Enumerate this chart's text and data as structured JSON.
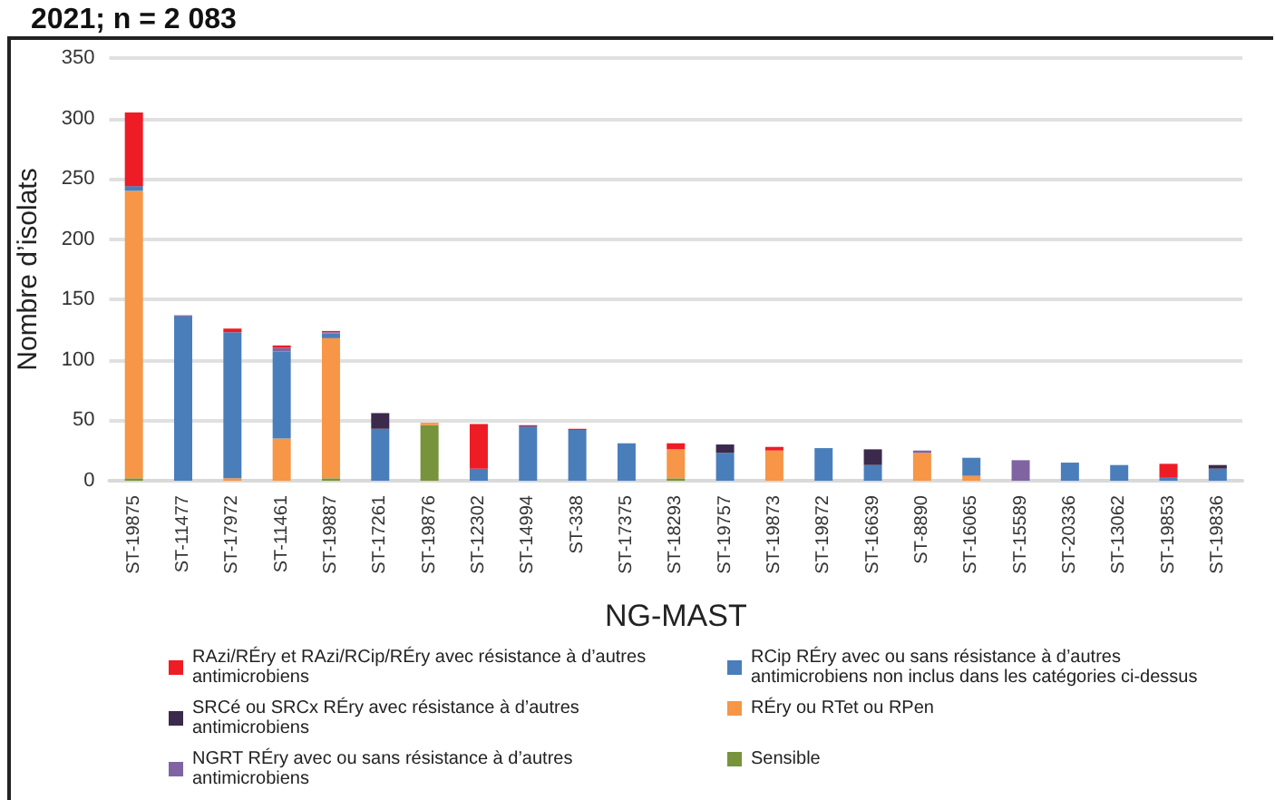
{
  "chart_data": {
    "type": "bar",
    "title": "2021; n = 2 083",
    "xlabel": "NG-MAST",
    "ylabel": "Nombre d’isolats",
    "categories": [
      "ST-19875",
      "ST-11477",
      "ST-17972",
      "ST-11461",
      "ST-19887",
      "ST-17261",
      "ST-19876",
      "ST-12302",
      "ST-14994",
      "ST-338",
      "ST-17375",
      "ST-18293",
      "ST-19757",
      "ST-19873",
      "ST-19872",
      "ST-16639",
      "ST-8890",
      "ST-16065",
      "ST-15589",
      "ST-20336",
      "ST-13062",
      "ST-19853",
      "ST-19836"
    ],
    "stacked": true,
    "ylim": [
      0,
      350
    ],
    "yticks": [
      0,
      50,
      100,
      150,
      200,
      250,
      300,
      350
    ],
    "grid": "y",
    "legend": "bottom",
    "series": [
      {
        "name": "Sensible",
        "color": "#77933c",
        "values": [
          2,
          0,
          0,
          0,
          2,
          0,
          46,
          0,
          0,
          0,
          0,
          2,
          0,
          0,
          0,
          0,
          0,
          0,
          0,
          0,
          0,
          0,
          0
        ]
      },
      {
        "name": "RÉry ou RTet ou RPen",
        "color": "#f79646",
        "values": [
          238,
          0,
          2,
          35,
          116,
          0,
          2,
          0,
          0,
          0,
          0,
          24,
          0,
          25,
          0,
          0,
          23,
          4,
          0,
          0,
          0,
          0,
          0
        ]
      },
      {
        "name": "RCip RÉry avec ou sans résistance à d’autres antimicrobiens non inclus dans les catégories ci-dessus",
        "color": "#4a7ebb",
        "values": [
          4,
          136,
          121,
          72,
          4,
          43,
          0,
          10,
          45,
          42,
          31,
          0,
          23,
          0,
          27,
          13,
          0,
          15,
          0,
          15,
          13,
          3,
          10
        ]
      },
      {
        "name": "NGRT RÉry avec ou sans résistance à d’autres antimicrobiens",
        "color": "#8064a2",
        "values": [
          0,
          1,
          0,
          3,
          1,
          0,
          0,
          0,
          0,
          0,
          0,
          0,
          0,
          0,
          0,
          0,
          2,
          0,
          17,
          0,
          0,
          0,
          0
        ]
      },
      {
        "name": "SRCé ou SRCx RÉry avec résistance à d’autres antimicrobiens",
        "color": "#3b2a4b",
        "values": [
          0,
          0,
          0,
          0,
          0,
          13,
          0,
          0,
          0,
          0,
          0,
          0,
          7,
          0,
          0,
          13,
          0,
          0,
          0,
          0,
          0,
          0,
          3
        ]
      },
      {
        "name": "RAzi/RÉry et RAzi/RCip/RÉry avec résistance à d’autres antimicrobiens",
        "color": "#ee1c25",
        "values": [
          61,
          0,
          3,
          2,
          1,
          0,
          0,
          37,
          1,
          1,
          0,
          5,
          0,
          3,
          0,
          0,
          0,
          0,
          0,
          0,
          0,
          11,
          0
        ]
      }
    ]
  }
}
